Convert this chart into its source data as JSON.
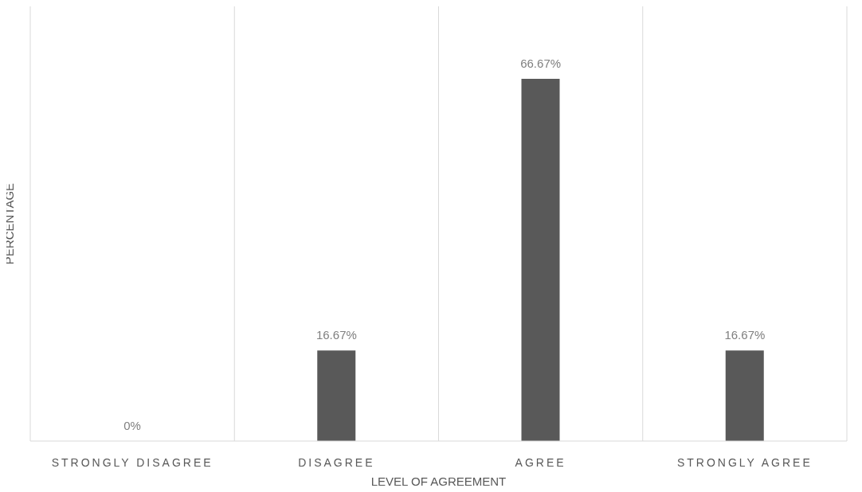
{
  "chart_data": {
    "type": "bar",
    "xlabel": "LEVEL OF AGREEMENT",
    "ylabel": "PERCENTAGE",
    "categories": [
      "STRONGLY DISAGREE",
      "DISAGREE",
      "AGREE",
      "STRONGLY AGREE"
    ],
    "values": [
      0,
      16.67,
      66.67,
      16.67
    ],
    "color": "#595959",
    "value_labels": [
      "0%",
      "16.67%",
      "66.67%",
      "16.67%"
    ],
    "grid": "x"
  }
}
